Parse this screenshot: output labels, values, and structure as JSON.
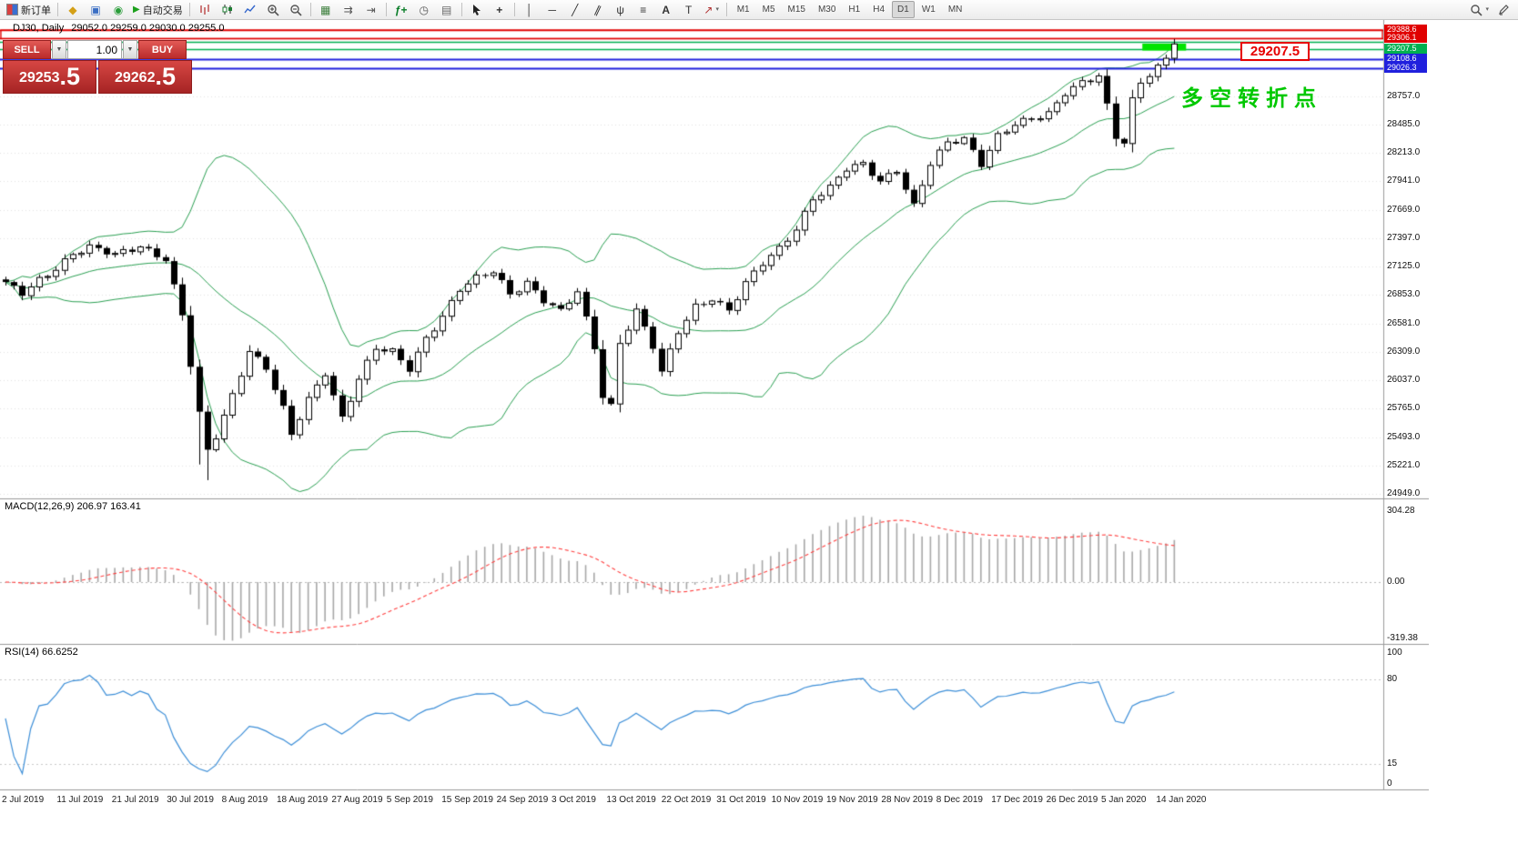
{
  "toolbar": {
    "new_order_label": "新订单",
    "autotrading_label": "自动交易",
    "timeframes": [
      "M1",
      "M5",
      "M15",
      "M30",
      "H1",
      "H4",
      "D1",
      "W1",
      "MN"
    ],
    "active_timeframe": "D1"
  },
  "trade_panel": {
    "sell_label": "SELL",
    "buy_label": "BUY",
    "lot_value": "1.00",
    "sell_price_main": "29253",
    "sell_price_frac": ".5",
    "buy_price_main": "29262",
    "buy_price_frac": ".5"
  },
  "chart_header": {
    "symbol": "DJ30, Daily",
    "ohlc": "29052.0 29259.0 29030.0 29255.0"
  },
  "annotations": {
    "price_callout": "29207.5",
    "callout_color": "#e60000",
    "turning_point_label": "多空转折点",
    "turning_point_color": "#00c800",
    "highlight_rect": {
      "from_candle": 135.2,
      "to_candle": 140.4,
      "price_top": 29258,
      "price_bottom": 29192,
      "color": "#00e400"
    }
  },
  "chart_data": {
    "type": "candlestick",
    "symbol": "DJ30",
    "timeframe": "Daily",
    "last_close": 29255.0,
    "candle_count": 140,
    "x_labels": [
      "2 Jul 2019",
      "11 Jul 2019",
      "21 Jul 2019",
      "30 Jul 2019",
      "8 Aug 2019",
      "18 Aug 2019",
      "27 Aug 2019",
      "5 Sep 2019",
      "15 Sep 2019",
      "24 Sep 2019",
      "3 Oct 2019",
      "13 Oct 2019",
      "22 Oct 2019",
      "31 Oct 2019",
      "10 Nov 2019",
      "19 Nov 2019",
      "28 Nov 2019",
      "8 Dec 2019",
      "17 Dec 2019",
      "26 Dec 2019",
      "5 Jan 2020",
      "14 Jan 2020"
    ],
    "y_gridline_prices": [
      28757.0,
      28485.0,
      28213.0,
      27941.0,
      27669.0,
      27397.0,
      27125.0,
      26853.0,
      26581.0,
      26309.0,
      26037.0,
      25765.0,
      25493.0,
      25221.0,
      24949.0
    ],
    "y_range": {
      "max": 29388.6,
      "min": 24949.0
    },
    "level_lines": [
      {
        "price": 29388.6,
        "color": "#e00000",
        "labeled": true
      },
      {
        "price": 29306.1,
        "color": "#e00000",
        "labeled": true
      },
      {
        "price": 29275.0,
        "color": "#00b050",
        "labeled": false
      },
      {
        "price": 29207.5,
        "color": "#00b050",
        "labeled": true
      },
      {
        "price": 29108.6,
        "color": "#2020dd",
        "labeled": true
      },
      {
        "price": 29026.3,
        "color": "#2020dd",
        "labeled": true
      }
    ],
    "price_path_anchors": [
      [
        0,
        26950
      ],
      [
        2,
        26860
      ],
      [
        4,
        27000
      ],
      [
        6,
        27120
      ],
      [
        8,
        27250
      ],
      [
        10,
        27300
      ],
      [
        13,
        27230
      ],
      [
        16,
        27330
      ],
      [
        19,
        27200
      ],
      [
        21,
        26650
      ],
      [
        23,
        25700
      ],
      [
        24,
        25350
      ],
      [
        25,
        25500
      ],
      [
        27,
        25900
      ],
      [
        29,
        26330
      ],
      [
        31,
        26150
      ],
      [
        33,
        25750
      ],
      [
        34,
        25500
      ],
      [
        36,
        25850
      ],
      [
        38,
        26120
      ],
      [
        40,
        25680
      ],
      [
        42,
        26050
      ],
      [
        44,
        26330
      ],
      [
        46,
        26300
      ],
      [
        48,
        26150
      ],
      [
        50,
        26450
      ],
      [
        52,
        26650
      ],
      [
        54,
        26900
      ],
      [
        56,
        27000
      ],
      [
        58,
        27080
      ],
      [
        60,
        26870
      ],
      [
        62,
        26980
      ],
      [
        64,
        26800
      ],
      [
        66,
        26680
      ],
      [
        68,
        26880
      ],
      [
        70,
        26350
      ],
      [
        71,
        25900
      ],
      [
        72,
        25800
      ],
      [
        73,
        26400
      ],
      [
        75,
        26700
      ],
      [
        77,
        26350
      ],
      [
        78,
        26100
      ],
      [
        80,
        26500
      ],
      [
        82,
        26750
      ],
      [
        84,
        26830
      ],
      [
        86,
        26700
      ],
      [
        88,
        26950
      ],
      [
        90,
        27150
      ],
      [
        92,
        27300
      ],
      [
        94,
        27500
      ],
      [
        96,
        27780
      ],
      [
        98,
        27870
      ],
      [
        100,
        28050
      ],
      [
        102,
        28100
      ],
      [
        104,
        27950
      ],
      [
        106,
        28060
      ],
      [
        108,
        27700
      ],
      [
        110,
        28100
      ],
      [
        112,
        28300
      ],
      [
        114,
        28350
      ],
      [
        116,
        28120
      ],
      [
        118,
        28380
      ],
      [
        120,
        28480
      ],
      [
        122,
        28520
      ],
      [
        124,
        28580
      ],
      [
        126,
        28800
      ],
      [
        128,
        28900
      ],
      [
        130,
        28950
      ],
      [
        132,
        28350
      ],
      [
        133,
        28300
      ],
      [
        134,
        28700
      ],
      [
        135,
        28880
      ],
      [
        136,
        28950
      ],
      [
        137,
        29050
      ],
      [
        138,
        29120
      ],
      [
        139,
        29255
      ]
    ],
    "special_wicks": [
      {
        "i": 23,
        "low": 25230
      },
      {
        "i": 24,
        "low": 25080
      }
    ],
    "bollinger": {
      "period": 20,
      "deviation": 2,
      "color": "#2aa052"
    },
    "macd": {
      "label": "MACD(12,26,9) 206.97 163.41",
      "fast": 12,
      "slow": 26,
      "signal": 9,
      "value": 206.97,
      "signal_value": 163.41,
      "scale_labels": [
        "304.28",
        "0.00",
        "-319.38"
      ],
      "histogram_color": "#a8a8a8",
      "signal_color": "#ff4040"
    },
    "rsi": {
      "label": "RSI(14) 66.6252",
      "period": 14,
      "value": 66.6252,
      "scale_labels": [
        "100",
        "80",
        "15",
        "0"
      ],
      "levels": [
        80,
        15
      ],
      "color": "#3d8fd8"
    }
  }
}
